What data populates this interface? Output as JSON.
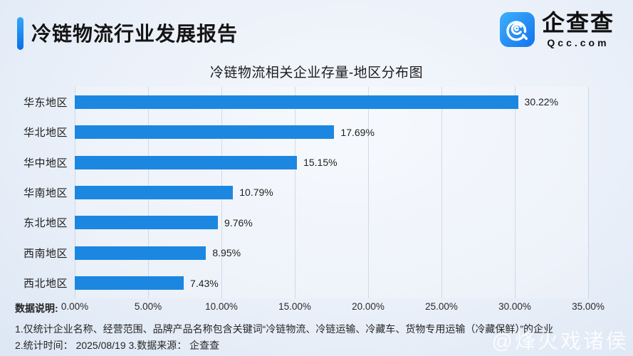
{
  "header": {
    "title": "冷链物流行业发展报告",
    "logo": {
      "name": "企查查",
      "domain": "Qcc.com"
    }
  },
  "chart_data": {
    "type": "bar",
    "orientation": "horizontal",
    "title": "冷链物流相关企业存量-地区分布图",
    "categories": [
      "华东地区",
      "华北地区",
      "华中地区",
      "华南地区",
      "东北地区",
      "西南地区",
      "西北地区"
    ],
    "values": [
      30.22,
      17.69,
      15.15,
      10.79,
      9.76,
      8.95,
      7.43
    ],
    "value_labels": [
      "30.22%",
      "17.69%",
      "15.15%",
      "10.79%",
      "9.76%",
      "8.95%",
      "7.43%"
    ],
    "x_ticks": [
      {
        "value": 0,
        "label": "0.00%"
      },
      {
        "value": 5,
        "label": "5.00%"
      },
      {
        "value": 10,
        "label": "10.00%"
      },
      {
        "value": 15,
        "label": "15.00%"
      },
      {
        "value": 20,
        "label": "20.00%"
      },
      {
        "value": 25,
        "label": "25.00%"
      },
      {
        "value": 30,
        "label": "30.00%"
      },
      {
        "value": 35,
        "label": "35.00%"
      }
    ],
    "xlim": [
      0,
      35
    ],
    "grid": true,
    "legend": null,
    "bar_color": "#1b87e1"
  },
  "footnotes": {
    "data_note_label": "数据说明:",
    "line1": "1.仅统计企业名称、经营范围、品牌产品名称包含关键词“冷链物流、冷链运输、冷藏车、货物专用运输（冷藏保鲜）”的企业",
    "line2": "2.统计时间： 2025/08/19   3.数据来源： 企查查"
  },
  "watermark": "@烽火戏诸侯",
  "colors": {
    "bar": "#1b87e1",
    "accent_gradient_top": "#35a7f8",
    "accent_gradient_bottom": "#0b6ee9",
    "background": "#e8eff8",
    "gridline": "#9eaec7",
    "text": "#1d1d1d"
  }
}
